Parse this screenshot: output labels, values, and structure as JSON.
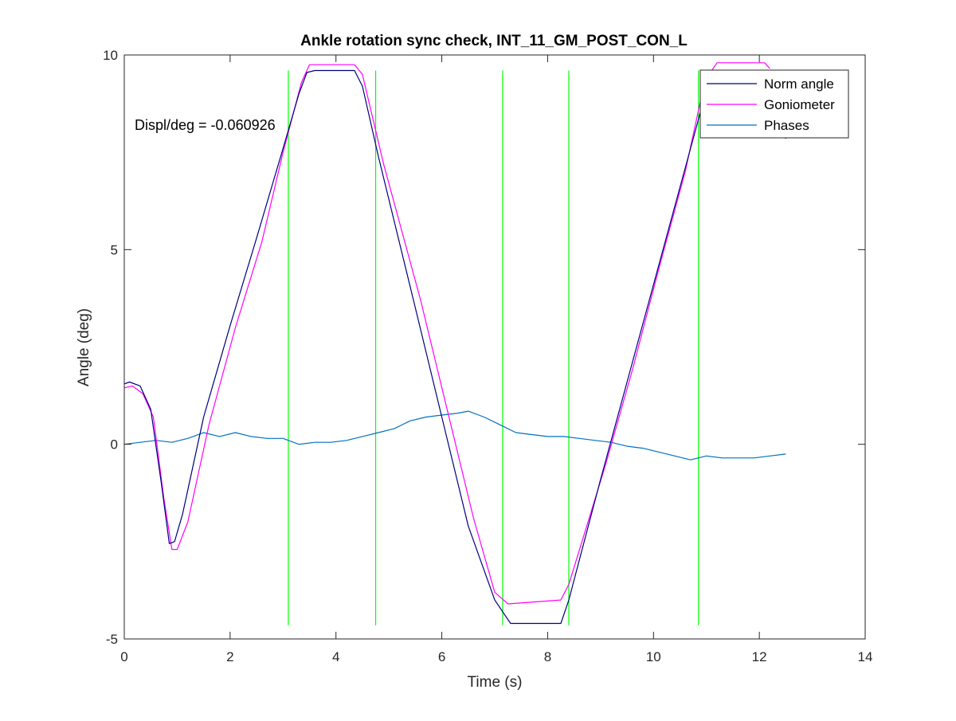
{
  "chart_data": {
    "type": "line",
    "title": "Ankle rotation sync check, INT_11_GM_POST_CON_L",
    "xlabel": "Time (s)",
    "ylabel": "Angle (deg)",
    "xlim": [
      0,
      14
    ],
    "ylim": [
      -5,
      10
    ],
    "xticks": [
      0,
      2,
      4,
      6,
      8,
      10,
      12,
      14
    ],
    "yticks": [
      -5,
      0,
      5,
      10
    ],
    "annotation": "Displ/deg = -0.060926",
    "legend": {
      "position": "top-right",
      "entries": [
        "Norm angle",
        "Goniometer",
        "Phases"
      ]
    },
    "grid": false,
    "series": [
      {
        "name": "Norm angle",
        "color": "#00007f",
        "x": [
          0,
          0.1,
          0.3,
          0.5,
          0.7,
          0.85,
          0.95,
          1.1,
          1.5,
          2.0,
          2.5,
          3.0,
          3.3,
          3.45,
          3.6,
          4.35,
          4.5,
          4.8,
          5.5,
          6.0,
          6.5,
          7.0,
          7.3,
          8.25,
          8.4,
          9.0,
          9.5,
          10.0,
          10.5,
          10.9,
          11.1,
          11.25,
          12.1,
          12.25,
          12.5
        ],
        "y": [
          1.55,
          1.6,
          1.5,
          0.9,
          -1.0,
          -2.55,
          -2.5,
          -1.8,
          0.7,
          3.05,
          5.3,
          7.6,
          9.0,
          9.55,
          9.6,
          9.6,
          9.2,
          7.4,
          3.5,
          0.7,
          -2.1,
          -4.0,
          -4.6,
          -4.6,
          -4.0,
          -0.9,
          1.6,
          4.1,
          6.6,
          8.6,
          9.4,
          9.6,
          9.6,
          9.2,
          7.85
        ]
      },
      {
        "name": "Goniometer",
        "color": "#ff00ff",
        "x": [
          0,
          0.15,
          0.35,
          0.55,
          0.75,
          0.9,
          1.0,
          1.2,
          1.6,
          2.1,
          2.6,
          3.0,
          3.35,
          3.5,
          3.6,
          4.35,
          4.5,
          4.9,
          5.6,
          6.1,
          6.6,
          7.0,
          7.25,
          8.25,
          8.4,
          9.1,
          9.6,
          10.1,
          10.6,
          10.9,
          11.1,
          11.2,
          12.1,
          12.2
        ],
        "y": [
          1.45,
          1.5,
          1.3,
          0.7,
          -1.4,
          -2.7,
          -2.7,
          -2.0,
          0.5,
          3.0,
          5.2,
          7.5,
          9.3,
          9.75,
          9.75,
          9.75,
          9.5,
          7.2,
          3.7,
          0.9,
          -1.9,
          -3.8,
          -4.1,
          -4.0,
          -3.6,
          -0.5,
          1.9,
          4.5,
          7.0,
          8.9,
          9.6,
          9.8,
          9.8,
          9.65
        ]
      },
      {
        "name": "Phases",
        "color": "#0072bd",
        "x": [
          0,
          0.3,
          0.6,
          0.9,
          1.2,
          1.5,
          1.8,
          2.1,
          2.4,
          2.7,
          3.0,
          3.3,
          3.6,
          3.9,
          4.2,
          4.5,
          4.8,
          5.1,
          5.4,
          5.7,
          6.0,
          6.3,
          6.5,
          6.8,
          7.1,
          7.4,
          7.7,
          8.0,
          8.3,
          8.6,
          8.9,
          9.2,
          9.5,
          9.8,
          10.1,
          10.4,
          10.7,
          11.0,
          11.3,
          11.6,
          11.9,
          12.2,
          12.5
        ],
        "y": [
          0.0,
          0.05,
          0.1,
          0.05,
          0.15,
          0.3,
          0.2,
          0.3,
          0.2,
          0.15,
          0.15,
          0.0,
          0.05,
          0.05,
          0.1,
          0.2,
          0.3,
          0.4,
          0.6,
          0.7,
          0.75,
          0.8,
          0.85,
          0.7,
          0.5,
          0.3,
          0.25,
          0.2,
          0.2,
          0.15,
          0.1,
          0.05,
          -0.05,
          -0.1,
          -0.2,
          -0.3,
          -0.4,
          -0.3,
          -0.35,
          -0.35,
          -0.35,
          -0.3,
          -0.25
        ]
      }
    ],
    "phase_lines": {
      "color": "#00ff00",
      "x": [
        3.1,
        4.75,
        7.15,
        8.4,
        10.85
      ],
      "y_range": [
        -4.65,
        9.6
      ]
    }
  }
}
